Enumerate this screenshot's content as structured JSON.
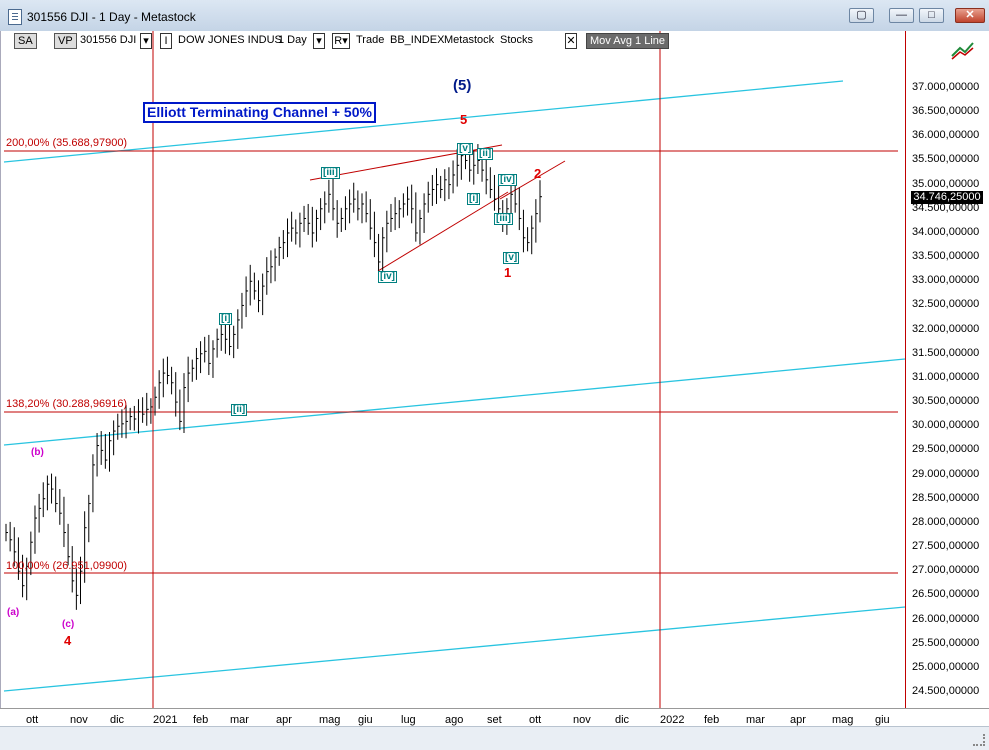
{
  "window": {
    "title": "301556 DJI - 1 Day - Metastock",
    "buttons": {
      "restore_down": "▢",
      "minimize": "—",
      "maximize": "□",
      "close": "✕"
    }
  },
  "toolbar": {
    "sa": "SA",
    "vp": "VP",
    "symbol": "301556 DJI",
    "dd1": "▾",
    "sep": "I",
    "security_name": "DOW JONES INDUS",
    "period": "1 Day",
    "dd2": "▾",
    "r": "R▾",
    "trade": "Trade",
    "bb_index": "BB_INDEX",
    "source": "Metastock",
    "type": "Stocks",
    "close_x": "✕",
    "indicator": "Mov Avg 1 Line"
  },
  "chart_data": {
    "type": "candlestick",
    "title": "Elliott Terminating Channel + 50%",
    "y_ticks": [
      "37.000,00000",
      "36.500,00000",
      "36.000,00000",
      "35.500,00000",
      "35.000,00000",
      "34.500,00000",
      "34.000,00000",
      "33.500,00000",
      "33.000,00000",
      "32.500,00000",
      "32.000,00000",
      "31.500,00000",
      "31.000,00000",
      "30.500,00000",
      "30.000,00000",
      "29.500,00000",
      "29.000,00000",
      "28.500,00000",
      "28.000,00000",
      "27.500,00000",
      "27.000,00000",
      "26.500,00000",
      "26.000,00000",
      "25.500,00000",
      "25.000,00000",
      "24.500,00000"
    ],
    "y_values": [
      37000,
      36500,
      36000,
      35500,
      35000,
      34500,
      34000,
      33500,
      33000,
      32500,
      32000,
      31500,
      31000,
      30500,
      30000,
      29500,
      29000,
      28500,
      28000,
      27500,
      27000,
      26500,
      26000,
      25500,
      25000,
      24500
    ],
    "last_price": "34.746,25000",
    "x_labels": [
      "ott",
      "nov",
      "dic",
      "2021",
      "feb",
      "mar",
      "apr",
      "mag",
      "giu",
      "lug",
      "ago",
      "set",
      "ott",
      "nov",
      "dic",
      "2022",
      "feb",
      "mar",
      "apr",
      "mag",
      "giu"
    ],
    "fib_levels": [
      {
        "label": "200,00% (35.688,97900)",
        "value": 35688.979
      },
      {
        "label": "138,20% (30.288,96916)",
        "value": 30288.96916
      },
      {
        "label": "100,00% (26.951,09900)",
        "value": 26951.099
      }
    ],
    "series_close": [
      27800,
      27650,
      27400,
      27000,
      26700,
      27100,
      27600,
      28100,
      28300,
      28500,
      28800,
      28700,
      28400,
      28200,
      27800,
      27300,
      26800,
      26500,
      27000,
      27900,
      28400,
      29200,
      29600,
      29500,
      29300,
      29700,
      29900,
      30000,
      30050,
      30100,
      30200,
      30150,
      30300,
      30250,
      30350,
      30400,
      30600,
      30900,
      31100,
      31050,
      30900,
      30500,
      30100,
      30800,
      31100,
      31200,
      31400,
      31500,
      31550,
      31300,
      31600,
      31800,
      31900,
      31800,
      31650,
      31900,
      32200,
      32500,
      32800,
      33000,
      32800,
      32600,
      32900,
      33200,
      33300,
      33500,
      33700,
      33800,
      34000,
      34100,
      34000,
      34200,
      34300,
      34200,
      34000,
      34300,
      34500,
      34600,
      34800,
      34500,
      34200,
      34300,
      34500,
      34600,
      34700,
      34500,
      34600,
      34400,
      34100,
      33800,
      33400,
      33900,
      34200,
      34300,
      34400,
      34500,
      34600,
      34700,
      34500,
      34000,
      34300,
      34600,
      34800,
      34900,
      35000,
      34900,
      35100,
      35000,
      35200,
      35400,
      35600,
      35500,
      35300,
      35400,
      35500,
      35300,
      35100,
      34900,
      34700,
      34500,
      34200,
      34500,
      34800,
      34600,
      34300,
      33900,
      33800,
      34100,
      34400,
      34750
    ],
    "annotations": {
      "big_5": "(5)",
      "red_5": "5",
      "red_1": "1",
      "red_2": "2",
      "red_4": "4",
      "w_iii_top": "[iii]",
      "w_v": "[v]",
      "w_ii": "[ii]",
      "w_i_small": "[i]",
      "w_iv_right": "[iv]",
      "w_iii_right": "[iii]",
      "w_v_right": "[v]",
      "w_iv_low": "[iv]",
      "w_i_left": "[i]",
      "w_ii_left": "[ii]",
      "m_b": "(b)",
      "m_a": "(a)",
      "m_c": "(c)"
    }
  },
  "colors": {
    "channel": "#29c4e0",
    "fib": "#c00000",
    "candles": "#000000"
  }
}
